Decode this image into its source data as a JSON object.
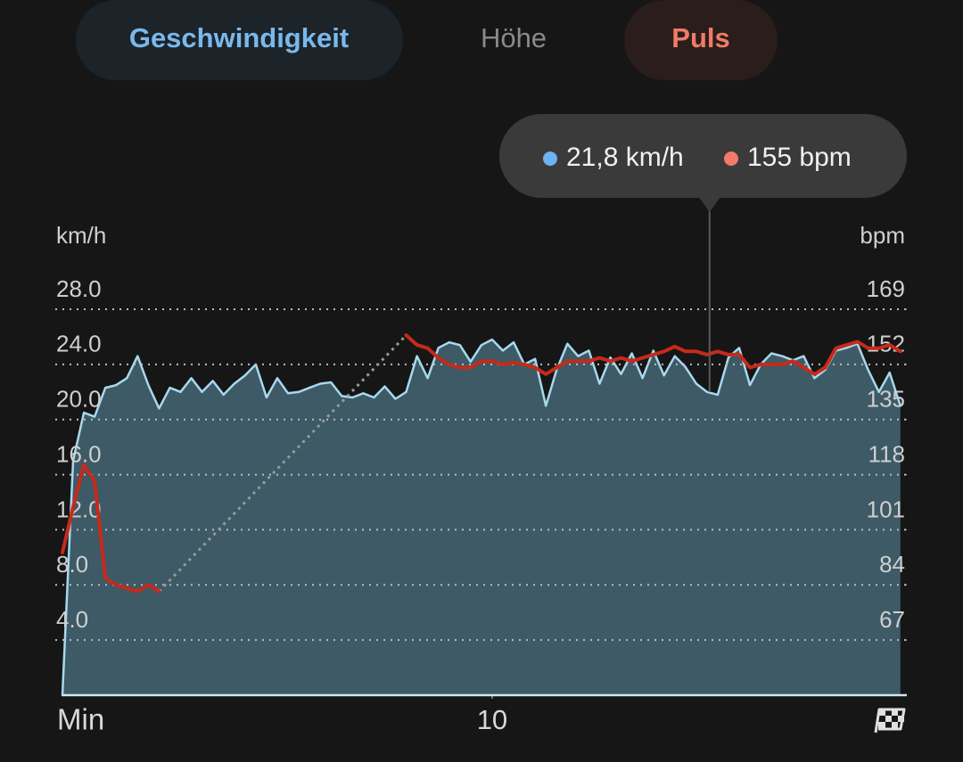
{
  "tabs": [
    "Geschwindigkeit",
    "Höhe",
    "Puls"
  ],
  "chart_data": {
    "type": "line",
    "y_label": "km/h",
    "y2_label": "bpm",
    "x_label": "Min",
    "tooltip": {
      "x": 15.06,
      "labels": [
        "21,8 km/h",
        "155 bpm"
      ]
    },
    "xlim": [
      0,
      19.65
    ],
    "xticks": [
      10
    ],
    "ylim": [
      0,
      28
    ],
    "yticks": [
      {
        "value": 4,
        "label": "4.0"
      },
      {
        "value": 8,
        "label": "8.0"
      },
      {
        "value": 12,
        "label": "12.0"
      },
      {
        "value": 16,
        "label": "16.0"
      },
      {
        "value": 20,
        "label": "20.0"
      },
      {
        "value": 24,
        "label": "24.0"
      },
      {
        "value": 28,
        "label": "28.0"
      }
    ],
    "y2lim": [
      50,
      169
    ],
    "y2ticks": [
      67,
      84,
      101,
      118,
      135,
      152,
      169
    ],
    "grid": true,
    "x": [
      0,
      0.25,
      0.5,
      0.75,
      1,
      1.25,
      1.5,
      1.75,
      2,
      2.25,
      2.5,
      2.75,
      3,
      3.25,
      3.5,
      3.75,
      4,
      4.25,
      4.5,
      4.75,
      5,
      5.25,
      5.5,
      5.75,
      6,
      6.25,
      6.5,
      6.75,
      7,
      7.25,
      7.5,
      7.75,
      8,
      8.25,
      8.5,
      8.75,
      9,
      9.25,
      9.5,
      9.75,
      10,
      10.25,
      10.5,
      10.75,
      11,
      11.25,
      11.5,
      11.75,
      12,
      12.25,
      12.5,
      12.75,
      13,
      13.25,
      13.5,
      13.75,
      14,
      14.25,
      14.5,
      14.75,
      15,
      15.25,
      15.5,
      15.75,
      16,
      16.25,
      16.5,
      16.75,
      17,
      17.25,
      17.5,
      17.75,
      18,
      18.25,
      18.5,
      18.75,
      19,
      19.25,
      19.5
    ],
    "series": [
      {
        "color": "#a8d8ee",
        "fill": "#3d5a66",
        "values": [
          0,
          17,
          20.5,
          20.2,
          22.3,
          22.5,
          23,
          24.6,
          22.5,
          20.8,
          22.3,
          22,
          23,
          22,
          22.8,
          21.8,
          22.6,
          23.2,
          24,
          21.6,
          23,
          21.9,
          22,
          22.3,
          22.6,
          22.7,
          21.7,
          21.6,
          21.9,
          21.6,
          22.4,
          21.5,
          22,
          24.6,
          23,
          25.2,
          25.6,
          25.4,
          24.2,
          25.4,
          25.8,
          25,
          25.6,
          24,
          24.4,
          21,
          23.6,
          25.5,
          24.6,
          25,
          22.6,
          24.5,
          23.3,
          24.8,
          23,
          25,
          23.2,
          24.6,
          23.8,
          22.6,
          22,
          21.8,
          24.5,
          25.2,
          22.5,
          24,
          24.8,
          24.6,
          24.3,
          24.6,
          23,
          23.6,
          25,
          25.2,
          25.5,
          23.6,
          22,
          23.4,
          21
        ]
      },
      {
        "color": "#c62a1a",
        "axis": "y2",
        "values": [
          94,
          108,
          121,
          116,
          86,
          84,
          83,
          82,
          84,
          82,
          null,
          null,
          null,
          null,
          null,
          null,
          null,
          null,
          null,
          null,
          null,
          null,
          null,
          null,
          null,
          null,
          null,
          null,
          null,
          null,
          null,
          null,
          161,
          158,
          157,
          154,
          152,
          151,
          151,
          153,
          153,
          152,
          152.5,
          152,
          151,
          149,
          151,
          153,
          153,
          153,
          154,
          153,
          154,
          153,
          154,
          155,
          156,
          157.5,
          156,
          156,
          155,
          156,
          155,
          155,
          151,
          152,
          152,
          152,
          153,
          151,
          149,
          151,
          157,
          158,
          159,
          157,
          157,
          158,
          156
        ]
      }
    ]
  }
}
